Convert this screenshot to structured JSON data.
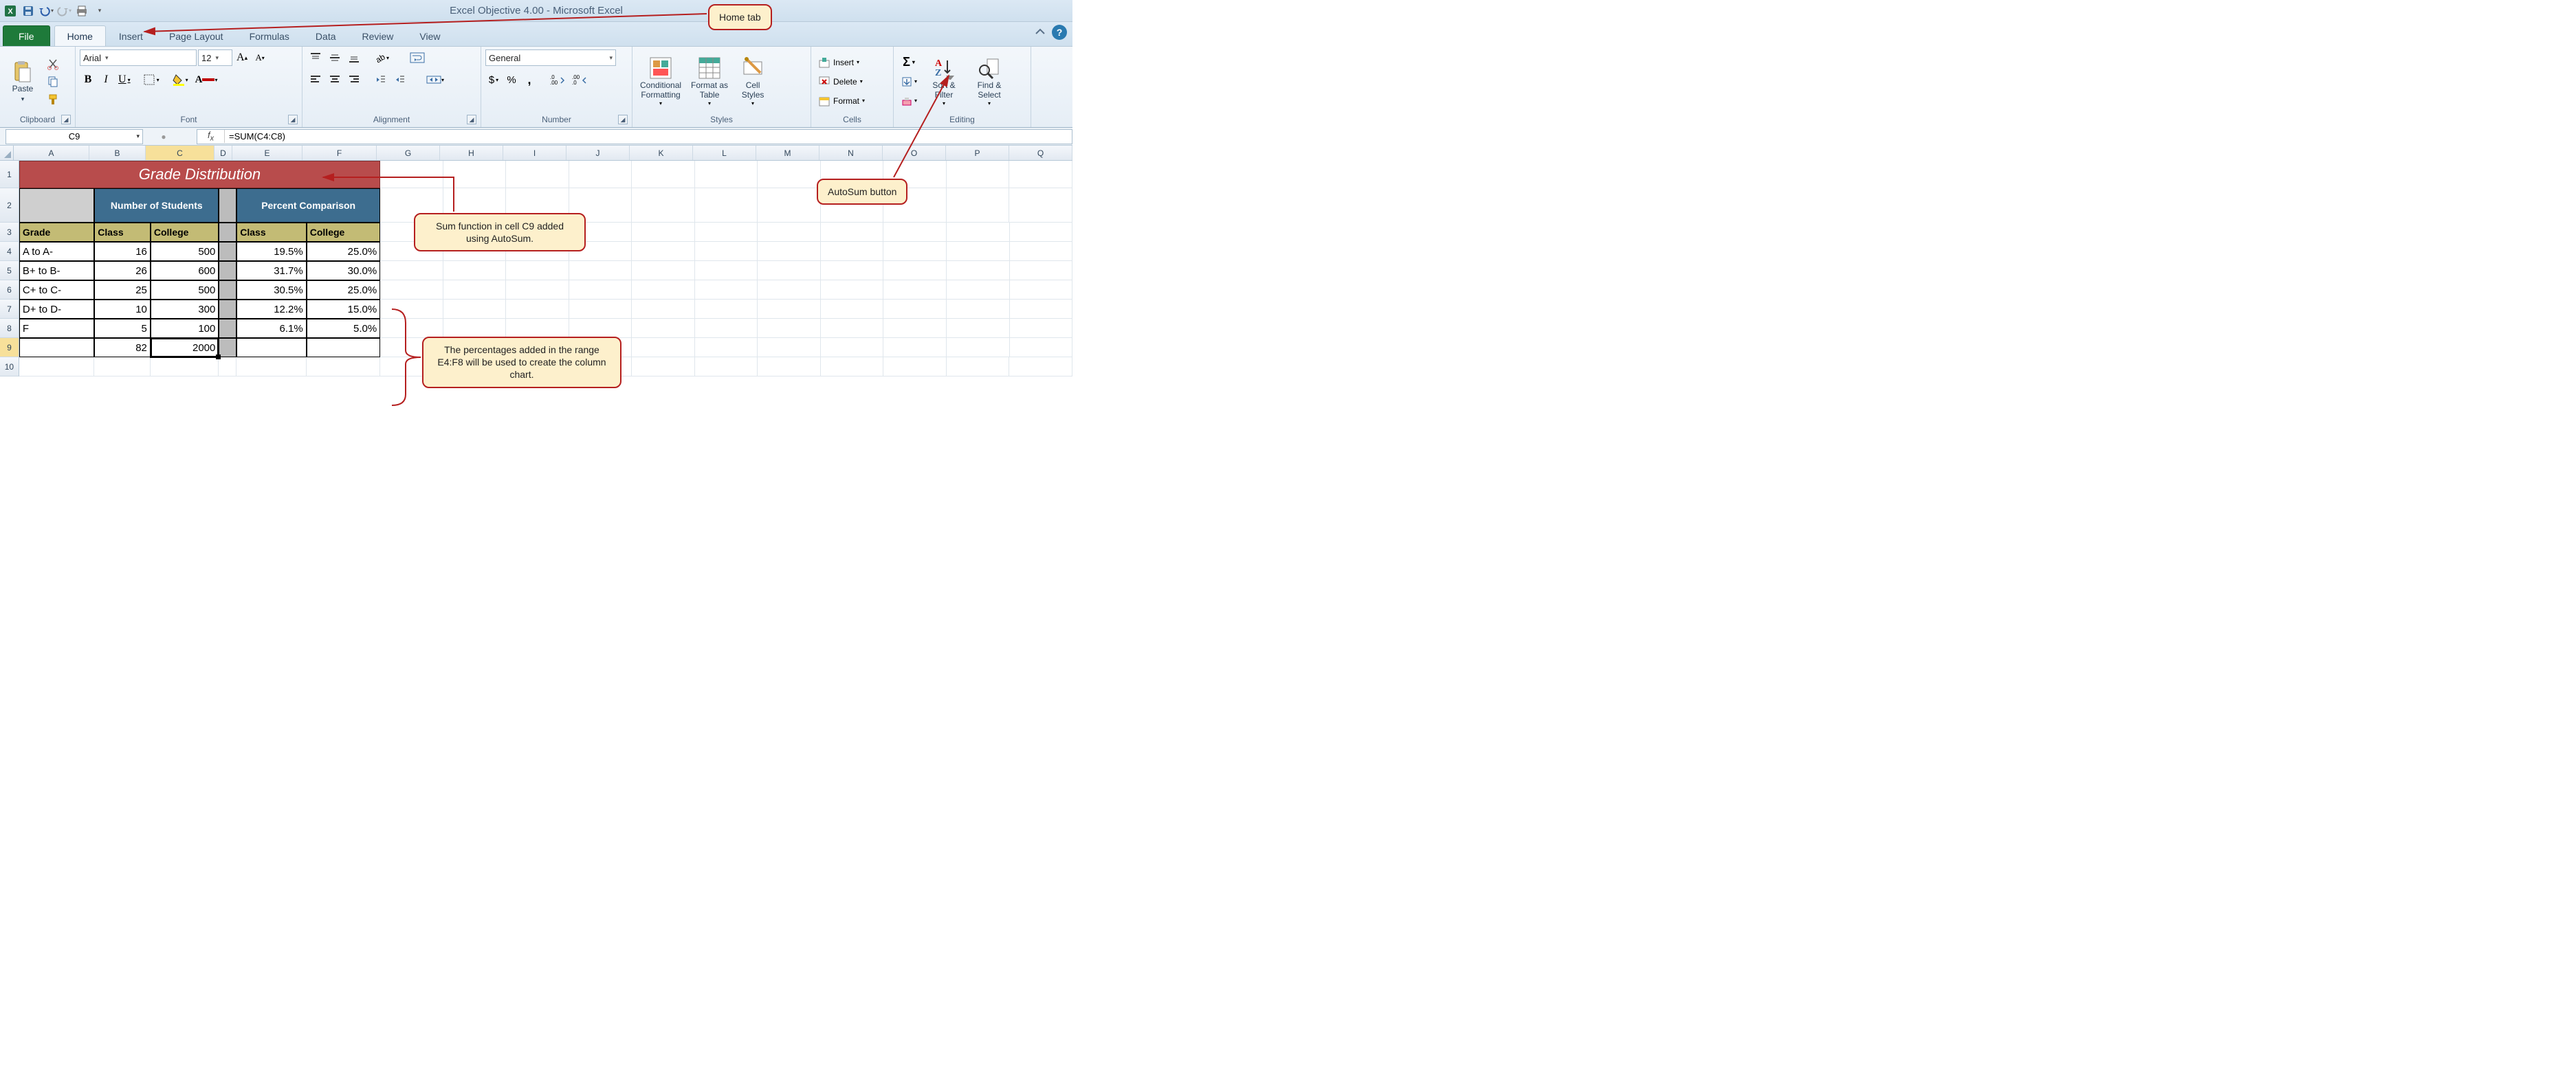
{
  "app": {
    "title": "Excel Objective 4.00 - Microsoft Excel"
  },
  "qat": {
    "items": [
      "excel-icon",
      "save-icon",
      "undo-icon",
      "redo-icon",
      "print-icon",
      "customize-icon"
    ]
  },
  "tabs": {
    "file": "File",
    "list": [
      "Home",
      "Insert",
      "Page Layout",
      "Formulas",
      "Data",
      "Review",
      "View"
    ],
    "active": "Home"
  },
  "ribbon": {
    "clipboard": {
      "label": "Clipboard",
      "paste": "Paste"
    },
    "font": {
      "label": "Font",
      "name": "Arial",
      "size": "12",
      "buttons": {
        "bold": "B",
        "italic": "I",
        "underline": "U"
      }
    },
    "alignment": {
      "label": "Alignment"
    },
    "number": {
      "label": "Number",
      "format": "General"
    },
    "styles": {
      "label": "Styles",
      "conditional": "Conditional\nFormatting",
      "formatas": "Format as\nTable",
      "cellstyles": "Cell\nStyles"
    },
    "cells": {
      "label": "Cells",
      "insert": "Insert",
      "delete": "Delete",
      "format": "Format"
    },
    "editing": {
      "label": "Editing",
      "sort": "Sort &\nFilter",
      "find": "Find &\nSelect"
    }
  },
  "formula_bar": {
    "name_box": "C9",
    "formula": "=SUM(C4:C8)"
  },
  "columns": {
    "letters": [
      "A",
      "B",
      "C",
      "D",
      "E",
      "F",
      "G",
      "H",
      "I",
      "J",
      "K",
      "L",
      "M",
      "N",
      "O",
      "P",
      "Q"
    ],
    "widths": [
      110,
      82,
      100,
      26,
      102,
      108,
      92,
      92,
      92,
      92,
      92,
      92,
      92,
      92,
      92,
      92,
      92
    ],
    "selected": "C"
  },
  "rows": {
    "count": 10,
    "heights": {
      "1": 40,
      "2": 50
    },
    "selected": 9
  },
  "table": {
    "title": "Grade Distribution",
    "header1": {
      "num": "Number of Students",
      "pct": "Percent Comparison"
    },
    "header2": [
      "Grade",
      "Class",
      "College",
      "Class",
      "College"
    ],
    "data": [
      {
        "grade": "A to A-",
        "class": "16",
        "college": "500",
        "pclass": "19.5%",
        "pcollege": "25.0%"
      },
      {
        "grade": "B+ to B-",
        "class": "26",
        "college": "600",
        "pclass": "31.7%",
        "pcollege": "30.0%"
      },
      {
        "grade": "C+ to C-",
        "class": "25",
        "college": "500",
        "pclass": "30.5%",
        "pcollege": "25.0%"
      },
      {
        "grade": "D+ to D-",
        "class": "10",
        "college": "300",
        "pclass": "12.2%",
        "pcollege": "15.0%"
      },
      {
        "grade": "F",
        "class": "5",
        "college": "100",
        "pclass": "6.1%",
        "pcollege": "5.0%"
      }
    ],
    "totals": {
      "class": "82",
      "college": "2000"
    }
  },
  "callouts": {
    "home": "Home tab",
    "autosum": "AutoSum button",
    "sumfn": "Sum function in cell C9 added using AutoSum.",
    "pct": "The percentages added in the range E4:F8 will be used to create the column chart."
  },
  "colors": {
    "callout_bg": "#fdf0cc",
    "callout_border": "#b51f1f",
    "table_title_bg": "#b84c4c",
    "table_header_bg": "#3d6d8f",
    "table_subheader_bg": "#c3bb75"
  }
}
